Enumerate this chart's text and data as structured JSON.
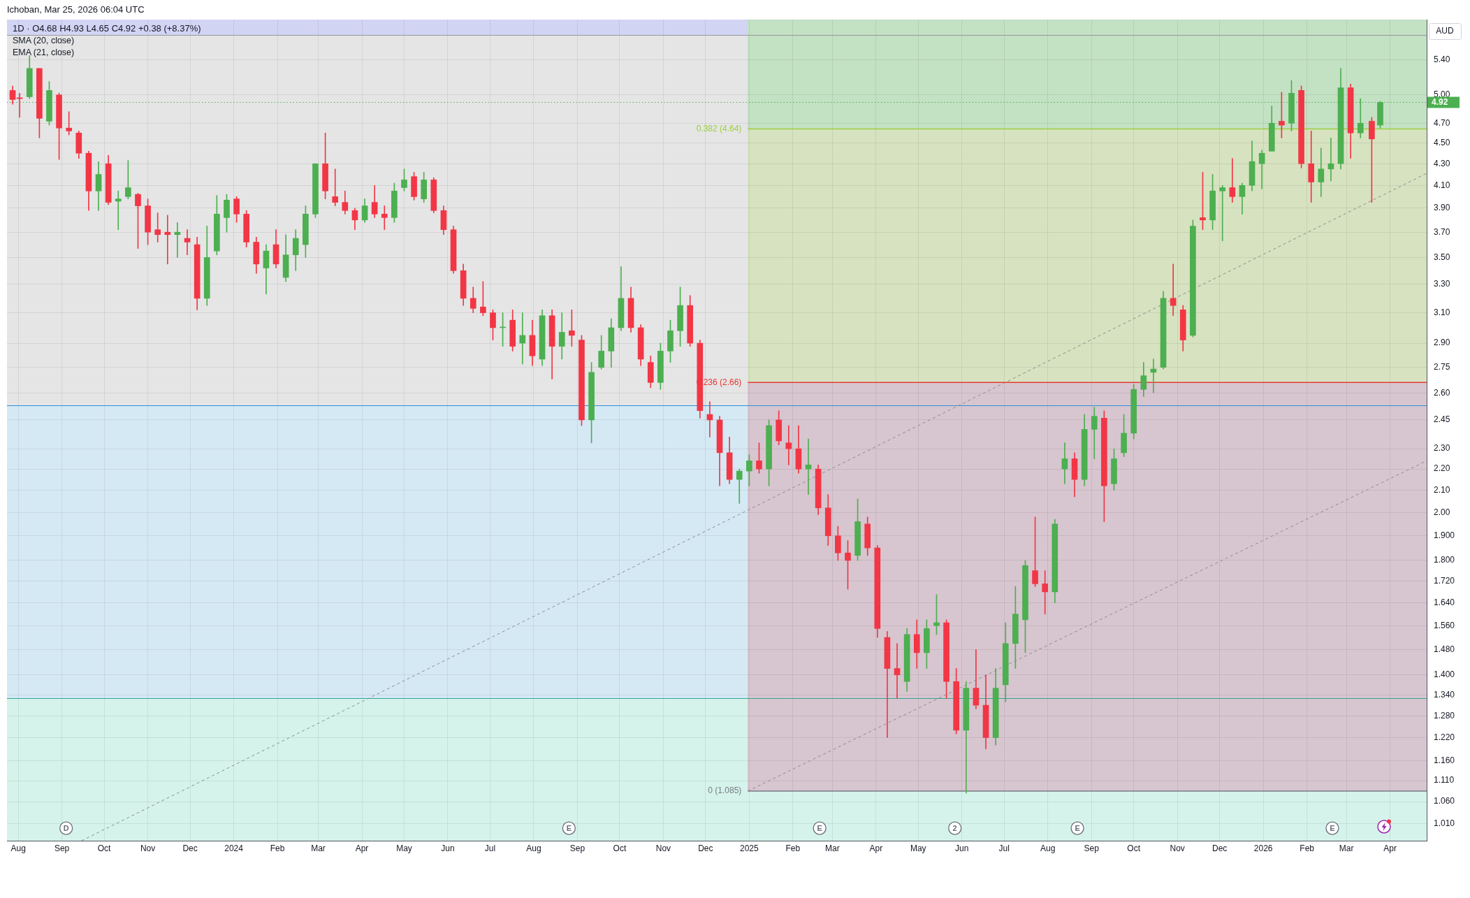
{
  "chart_data": {
    "type": "candlestick",
    "title": "Ichoban, Mar 25, 2026 06:04 UTC",
    "subtitle": "1D · O4.68 H4.93 L4.65 C4.92 +0.38 (+8.37%)",
    "ylabel": "AUD",
    "annotations": [
      "SMA (20, close)",
      "EMA (21, close)",
      {
        "text": "D",
        "x": "2023-09-04",
        "y": 1.0
      },
      {
        "text": "E",
        "x": "2024-08-26",
        "y": 1.0
      },
      {
        "text": "E",
        "x": "2025-02-20",
        "y": 1.0
      },
      {
        "text": "2",
        "x": "2025-05-27",
        "y": 1.0
      },
      {
        "text": "E",
        "x": "2025-08-22",
        "y": 1.0
      },
      {
        "text": "E",
        "x": "2026-02-19",
        "y": 1.0
      }
    ],
    "x": [
      "2023-07-28",
      "2023-08-02",
      "2023-08-09",
      "2023-08-16",
      "2023-08-23",
      "2023-08-30",
      "2023-09-06",
      "2023-09-13",
      "2023-09-20",
      "2023-09-27",
      "2023-10-04",
      "2023-10-11",
      "2023-10-18",
      "2023-10-25",
      "2023-11-01",
      "2023-11-08",
      "2023-11-15",
      "2023-11-22",
      "2023-11-29",
      "2023-12-06",
      "2023-12-13",
      "2023-12-20",
      "2023-12-27",
      "2024-01-03",
      "2024-01-10",
      "2024-01-17",
      "2024-01-24",
      "2024-01-31",
      "2024-02-07",
      "2024-02-14",
      "2024-02-21",
      "2024-02-28",
      "2024-03-06",
      "2024-03-13",
      "2024-03-20",
      "2024-03-27",
      "2024-04-03",
      "2024-04-10",
      "2024-04-17",
      "2024-04-24",
      "2024-05-01",
      "2024-05-08",
      "2024-05-15",
      "2024-05-22",
      "2024-05-29",
      "2024-06-05",
      "2024-06-12",
      "2024-06-19",
      "2024-06-26",
      "2024-07-03",
      "2024-07-10",
      "2024-07-17",
      "2024-07-24",
      "2024-07-31",
      "2024-08-07",
      "2024-08-14",
      "2024-08-21",
      "2024-08-28",
      "2024-09-04",
      "2024-09-11",
      "2024-09-18",
      "2024-09-25",
      "2024-10-02",
      "2024-10-09",
      "2024-10-16",
      "2024-10-23",
      "2024-10-30",
      "2024-11-06",
      "2024-11-13",
      "2024-11-20",
      "2024-11-27",
      "2024-12-04",
      "2024-12-11",
      "2024-12-18",
      "2024-12-25",
      "2025-01-01",
      "2025-01-08",
      "2025-01-15",
      "2025-01-22",
      "2025-01-29",
      "2025-02-05",
      "2025-02-12",
      "2025-02-19",
      "2025-02-26",
      "2025-03-05",
      "2025-03-12",
      "2025-03-19",
      "2025-03-26",
      "2025-04-02",
      "2025-04-09",
      "2025-04-16",
      "2025-04-23",
      "2025-04-30",
      "2025-05-07",
      "2025-05-14",
      "2025-05-21",
      "2025-05-28",
      "2025-06-04",
      "2025-06-11",
      "2025-06-18",
      "2025-06-25",
      "2025-07-02",
      "2025-07-09",
      "2025-07-16",
      "2025-07-23",
      "2025-07-30",
      "2025-08-06",
      "2025-08-13",
      "2025-08-20",
      "2025-08-27",
      "2025-09-03",
      "2025-09-10",
      "2025-09-17",
      "2025-09-24",
      "2025-10-01",
      "2025-10-08",
      "2025-10-15",
      "2025-10-22",
      "2025-10-29",
      "2025-11-05",
      "2025-11-12",
      "2025-11-19",
      "2025-11-26",
      "2025-12-03",
      "2025-12-10",
      "2025-12-17",
      "2025-12-24",
      "2025-12-31",
      "2026-01-07",
      "2026-01-14",
      "2026-01-21",
      "2026-01-28",
      "2026-02-04",
      "2026-02-11",
      "2026-02-18",
      "2026-02-25",
      "2026-03-04",
      "2026-03-11",
      "2026-03-19",
      "2026-03-25"
    ],
    "ohlc": [
      [
        5.05,
        5.1,
        4.9,
        4.95
      ],
      [
        4.97,
        5.02,
        4.76,
        4.96
      ],
      [
        4.98,
        5.45,
        4.96,
        5.3
      ],
      [
        5.3,
        5.3,
        4.55,
        4.75
      ],
      [
        4.72,
        5.15,
        4.68,
        5.05
      ],
      [
        5.0,
        5.02,
        4.34,
        4.65
      ],
      [
        4.65,
        4.82,
        4.58,
        4.62
      ],
      [
        4.6,
        4.62,
        4.35,
        4.4
      ],
      [
        4.4,
        4.42,
        3.88,
        4.05
      ],
      [
        4.05,
        4.32,
        3.88,
        4.2
      ],
      [
        4.3,
        4.38,
        3.93,
        3.95
      ],
      [
        3.96,
        4.05,
        3.72,
        3.98
      ],
      [
        4.0,
        4.33,
        3.98,
        4.08
      ],
      [
        4.02,
        4.03,
        3.57,
        3.92
      ],
      [
        3.92,
        3.98,
        3.6,
        3.7
      ],
      [
        3.72,
        3.86,
        3.62,
        3.68
      ],
      [
        3.7,
        3.84,
        3.45,
        3.68
      ],
      [
        3.68,
        3.78,
        3.5,
        3.7
      ],
      [
        3.65,
        3.72,
        3.52,
        3.62
      ],
      [
        3.6,
        3.66,
        3.12,
        3.2
      ],
      [
        3.2,
        3.75,
        3.15,
        3.5
      ],
      [
        3.55,
        4.01,
        3.52,
        3.85
      ],
      [
        3.82,
        4.02,
        3.7,
        3.97
      ],
      [
        3.98,
        4.0,
        3.78,
        3.85
      ],
      [
        3.85,
        3.88,
        3.58,
        3.62
      ],
      [
        3.62,
        3.66,
        3.38,
        3.45
      ],
      [
        3.42,
        3.6,
        3.23,
        3.55
      ],
      [
        3.6,
        3.72,
        3.42,
        3.45
      ],
      [
        3.35,
        3.68,
        3.32,
        3.52
      ],
      [
        3.52,
        3.72,
        3.4,
        3.65
      ],
      [
        3.6,
        3.92,
        3.5,
        3.85
      ],
      [
        3.85,
        4.3,
        3.82,
        4.3
      ],
      [
        4.3,
        4.6,
        3.98,
        4.05
      ],
      [
        4.0,
        4.25,
        3.92,
        3.95
      ],
      [
        3.95,
        4.05,
        3.85,
        3.88
      ],
      [
        3.88,
        3.9,
        3.72,
        3.8
      ],
      [
        3.8,
        3.98,
        3.78,
        3.92
      ],
      [
        3.95,
        4.1,
        3.82,
        3.85
      ],
      [
        3.85,
        3.92,
        3.72,
        3.82
      ],
      [
        3.82,
        4.12,
        3.78,
        4.05
      ],
      [
        4.08,
        4.25,
        4.05,
        4.15
      ],
      [
        4.18,
        4.22,
        3.97,
        4.0
      ],
      [
        3.98,
        4.22,
        3.95,
        4.15
      ],
      [
        4.15,
        4.17,
        3.86,
        3.88
      ],
      [
        3.88,
        3.92,
        3.68,
        3.72
      ],
      [
        3.72,
        3.75,
        3.38,
        3.4
      ],
      [
        3.4,
        3.45,
        3.15,
        3.2
      ],
      [
        3.2,
        3.28,
        3.1,
        3.13
      ],
      [
        3.14,
        3.32,
        3.08,
        3.1
      ],
      [
        3.1,
        3.12,
        2.92,
        3.0
      ],
      [
        3.0,
        3.1,
        2.88,
        3.0
      ],
      [
        3.05,
        3.12,
        2.85,
        2.88
      ],
      [
        2.9,
        3.1,
        2.77,
        2.95
      ],
      [
        2.95,
        3.05,
        2.76,
        2.82
      ],
      [
        2.8,
        3.12,
        2.76,
        3.08
      ],
      [
        3.08,
        3.12,
        2.68,
        2.88
      ],
      [
        2.88,
        3.1,
        2.8,
        2.97
      ],
      [
        2.98,
        3.12,
        2.88,
        2.95
      ],
      [
        2.92,
        2.95,
        2.42,
        2.45
      ],
      [
        2.45,
        2.78,
        2.33,
        2.72
      ],
      [
        2.75,
        2.95,
        2.74,
        2.85
      ],
      [
        2.85,
        3.06,
        2.75,
        3.0
      ],
      [
        3.0,
        3.43,
        2.98,
        3.2
      ],
      [
        3.2,
        3.28,
        2.97,
        3.0
      ],
      [
        3.0,
        3.02,
        2.76,
        2.8
      ],
      [
        2.78,
        2.82,
        2.63,
        2.66
      ],
      [
        2.66,
        2.9,
        2.62,
        2.85
      ],
      [
        2.85,
        3.05,
        2.78,
        2.98
      ],
      [
        2.98,
        3.28,
        2.88,
        3.15
      ],
      [
        3.15,
        3.22,
        2.88,
        2.9
      ],
      [
        2.9,
        2.92,
        2.46,
        2.5
      ],
      [
        2.48,
        2.55,
        2.36,
        2.45
      ],
      [
        2.45,
        2.47,
        2.12,
        2.28
      ],
      [
        2.28,
        2.36,
        2.13,
        2.15
      ],
      [
        2.15,
        2.2,
        2.04,
        2.19
      ],
      [
        2.19,
        2.27,
        2.12,
        2.24
      ],
      [
        2.24,
        2.33,
        2.18,
        2.2
      ],
      [
        2.2,
        2.45,
        2.12,
        2.42
      ],
      [
        2.45,
        2.5,
        2.32,
        2.34
      ],
      [
        2.33,
        2.42,
        2.22,
        2.3
      ],
      [
        2.3,
        2.42,
        2.18,
        2.2
      ],
      [
        2.2,
        2.35,
        2.08,
        2.22
      ],
      [
        2.2,
        2.22,
        1.99,
        2.02
      ],
      [
        2.02,
        2.08,
        1.86,
        1.9
      ],
      [
        1.9,
        1.94,
        1.8,
        1.83
      ],
      [
        1.83,
        1.88,
        1.69,
        1.8
      ],
      [
        1.82,
        2.06,
        1.8,
        1.96
      ],
      [
        1.95,
        1.98,
        1.82,
        1.85
      ],
      [
        1.85,
        1.86,
        1.52,
        1.55
      ],
      [
        1.52,
        1.54,
        1.22,
        1.42
      ],
      [
        1.42,
        1.5,
        1.33,
        1.4
      ],
      [
        1.38,
        1.55,
        1.35,
        1.53
      ],
      [
        1.53,
        1.58,
        1.42,
        1.47
      ],
      [
        1.47,
        1.58,
        1.42,
        1.55
      ],
      [
        1.56,
        1.67,
        1.53,
        1.57
      ],
      [
        1.57,
        1.58,
        1.33,
        1.38
      ],
      [
        1.38,
        1.42,
        1.23,
        1.24
      ],
      [
        1.24,
        1.38,
        1.08,
        1.36
      ],
      [
        1.36,
        1.48,
        1.3,
        1.31
      ],
      [
        1.31,
        1.4,
        1.19,
        1.22
      ],
      [
        1.22,
        1.42,
        1.2,
        1.36
      ],
      [
        1.37,
        1.57,
        1.32,
        1.5
      ],
      [
        1.5,
        1.7,
        1.42,
        1.6
      ],
      [
        1.58,
        1.8,
        1.47,
        1.78
      ],
      [
        1.76,
        1.98,
        1.7,
        1.71
      ],
      [
        1.71,
        1.76,
        1.6,
        1.68
      ],
      [
        1.68,
        1.97,
        1.64,
        1.95
      ],
      [
        2.2,
        2.33,
        2.13,
        2.25
      ],
      [
        2.25,
        2.28,
        2.07,
        2.15
      ],
      [
        2.15,
        2.48,
        2.12,
        2.4
      ],
      [
        2.4,
        2.52,
        2.25,
        2.47
      ],
      [
        2.46,
        2.5,
        1.96,
        2.12
      ],
      [
        2.13,
        2.3,
        2.1,
        2.25
      ],
      [
        2.28,
        2.48,
        2.26,
        2.38
      ],
      [
        2.38,
        2.65,
        2.35,
        2.62
      ],
      [
        2.62,
        2.78,
        2.58,
        2.7
      ],
      [
        2.72,
        2.8,
        2.6,
        2.74
      ],
      [
        2.75,
        3.25,
        2.74,
        3.2
      ],
      [
        3.2,
        3.45,
        3.08,
        3.15
      ],
      [
        3.12,
        3.15,
        2.85,
        2.92
      ],
      [
        2.95,
        3.8,
        2.94,
        3.75
      ],
      [
        3.82,
        4.22,
        3.72,
        3.8
      ],
      [
        3.8,
        4.2,
        3.72,
        4.05
      ],
      [
        4.05,
        4.1,
        3.63,
        4.08
      ],
      [
        4.08,
        4.35,
        3.95,
        4.0
      ],
      [
        4.0,
        4.12,
        3.85,
        4.1
      ],
      [
        4.1,
        4.52,
        4.05,
        4.32
      ],
      [
        4.3,
        4.43,
        4.07,
        4.4
      ],
      [
        4.42,
        4.88,
        4.42,
        4.7
      ],
      [
        4.72,
        5.03,
        4.55,
        4.68
      ],
      [
        4.7,
        5.16,
        4.62,
        5.02
      ],
      [
        5.05,
        5.1,
        4.26,
        4.3
      ],
      [
        4.3,
        4.62,
        3.95,
        4.13
      ],
      [
        4.13,
        4.45,
        4.0,
        4.25
      ],
      [
        4.25,
        4.55,
        4.14,
        4.3
      ],
      [
        4.3,
        5.3,
        4.25,
        5.08
      ],
      [
        5.08,
        5.12,
        4.35,
        4.6
      ],
      [
        4.6,
        4.96,
        4.55,
        4.7
      ],
      [
        4.72,
        4.76,
        3.95,
        4.54
      ],
      [
        4.68,
        4.93,
        4.65,
        4.92
      ]
    ],
    "colors": [
      "#f23645",
      "#f23645",
      "#4caf50",
      "#f23645",
      "#4caf50",
      "#f23645",
      "#f23645",
      "#f23645",
      "#f23645",
      "#4caf50",
      "#f23645",
      "#4caf50",
      "#4caf50",
      "#f23645",
      "#f23645",
      "#f23645",
      "#f23645",
      "#4caf50",
      "#f23645",
      "#f23645",
      "#4caf50",
      "#4caf50",
      "#4caf50",
      "#f23645",
      "#f23645",
      "#f23645",
      "#4caf50",
      "#f23645",
      "#4caf50",
      "#4caf50",
      "#4caf50",
      "#4caf50",
      "#f23645",
      "#f23645",
      "#f23645",
      "#f23645",
      "#4caf50",
      "#f23645",
      "#f23645",
      "#4caf50",
      "#4caf50",
      "#f23645",
      "#4caf50",
      "#f23645",
      "#f23645",
      "#f23645",
      "#f23645",
      "#f23645",
      "#f23645",
      "#f23645",
      "#4caf50",
      "#f23645",
      "#4caf50",
      "#f23645",
      "#4caf50",
      "#f23645",
      "#4caf50",
      "#f23645",
      "#f23645",
      "#4caf50",
      "#4caf50",
      "#4caf50",
      "#4caf50",
      "#f23645",
      "#f23645",
      "#f23645",
      "#4caf50",
      "#4caf50",
      "#4caf50",
      "#f23645",
      "#f23645",
      "#f23645",
      "#f23645",
      "#f23645",
      "#4caf50",
      "#4caf50",
      "#f23645",
      "#4caf50",
      "#f23645",
      "#f23645",
      "#f23645",
      "#4caf50",
      "#f23645",
      "#f23645",
      "#f23645",
      "#f23645",
      "#4caf50",
      "#f23645",
      "#f23645",
      "#f23645",
      "#f23645",
      "#4caf50",
      "#f23645",
      "#4caf50",
      "#4caf50",
      "#f23645",
      "#f23645",
      "#4caf50",
      "#f23645",
      "#f23645",
      "#4caf50",
      "#4caf50",
      "#4caf50",
      "#4caf50",
      "#f23645",
      "#f23645",
      "#4caf50",
      "#4caf50",
      "#f23645",
      "#4caf50",
      "#4caf50",
      "#f23645",
      "#4caf50",
      "#4caf50",
      "#4caf50",
      "#4caf50",
      "#4caf50",
      "#4caf50",
      "#f23645",
      "#f23645",
      "#4caf50",
      "#f23645",
      "#4caf50",
      "#4caf50",
      "#f23645",
      "#4caf50",
      "#4caf50",
      "#4caf50",
      "#4caf50",
      "#f23645",
      "#4caf50",
      "#f23645",
      "#f23645",
      "#4caf50",
      "#4caf50",
      "#4caf50",
      "#f23645",
      "#4caf50",
      "#f23645",
      "#4caf50"
    ],
    "series": [
      {
        "type": "line",
        "name": "0.382 (4.64)",
        "color": "#9ccf3e",
        "x": [
          "2024-12-31",
          "2026-04-27"
        ],
        "values": [
          4.64,
          4.64
        ]
      },
      {
        "type": "line",
        "name": "0.236 (2.66)",
        "color": "#e53935",
        "x": [
          "2024-12-31",
          "2026-04-27"
        ],
        "values": [
          2.66,
          2.66
        ]
      },
      {
        "type": "line",
        "name": "0 (1.085)",
        "color": "#787b86",
        "x": [
          "2024-12-31",
          "2026-04-27"
        ],
        "values": [
          1.085,
          1.085
        ]
      },
      {
        "type": "line",
        "color": "#8c8c8c",
        "line_style": "dashed",
        "x": [
          "2023-09-15",
          "2026-04-27"
        ],
        "values": [
          0.973,
          4.21
        ]
      },
      {
        "type": "line",
        "color": "#8c8c8c",
        "line_style": "dashed",
        "x": [
          "2024-12-31",
          "2026-04-27"
        ],
        "values": [
          1.085,
          2.24
        ]
      }
    ],
    "ref_lines": [
      {
        "axis": "y",
        "value": 5.7,
        "color": "#9598a1"
      },
      {
        "axis": "y",
        "value": 2.53,
        "color": "#2f8fd6"
      },
      {
        "axis": "y",
        "value": 1.33,
        "color": "#33a596"
      },
      {
        "axis": "y",
        "value": 4.92,
        "label": "4.92",
        "color": "#4caf50",
        "line_style": "dotted"
      }
    ],
    "bands": [
      {
        "axis": "y",
        "from": 5.7,
        "to": 5.9,
        "color": "#d2d4f4"
      },
      {
        "axis": "y",
        "from": 2.53,
        "to": 5.7,
        "color": "#e5e5e5"
      },
      {
        "axis": "y",
        "from": 1.33,
        "to": 2.53,
        "color": "#d5e9f5"
      },
      {
        "axis": "y",
        "from": 0.973,
        "to": 1.33,
        "color": "#d5f3ea"
      },
      {
        "axis": "x",
        "from": "2024-12-31",
        "to": "2026-04-27",
        "color": "#d7c5cf"
      },
      {
        "axis": "y",
        "from": 4.64,
        "to": 5.9,
        "color": "#c3e1c3"
      },
      {
        "axis": "y",
        "from": 2.66,
        "to": 4.64,
        "color": "#d7e2c1"
      },
      {
        "axis": "y",
        "from": 0.973,
        "to": 1.085,
        "color": "#d5f3ea"
      }
    ],
    "xlim": [
      "2023-07-24",
      "2026-04-27"
    ],
    "xticks": [
      {
        "value": "2023-08-01",
        "label": "Aug"
      },
      {
        "value": "2023-09-01",
        "label": "Sep"
      },
      {
        "value": "2023-10-01",
        "label": "Oct"
      },
      {
        "value": "2023-11-01",
        "label": "Nov"
      },
      {
        "value": "2023-12-01",
        "label": "Dec"
      },
      {
        "value": "2024-01-01",
        "label": "2024"
      },
      {
        "value": "2024-02-01",
        "label": "Feb"
      },
      {
        "value": "2024-03-01",
        "label": "Mar"
      },
      {
        "value": "2024-04-01",
        "label": "Apr"
      },
      {
        "value": "2024-05-01",
        "label": "May"
      },
      {
        "value": "2024-06-01",
        "label": "Jun"
      },
      {
        "value": "2024-07-01",
        "label": "Jul"
      },
      {
        "value": "2024-08-01",
        "label": "Aug"
      },
      {
        "value": "2024-09-01",
        "label": "Sep"
      },
      {
        "value": "2024-10-01",
        "label": "Oct"
      },
      {
        "value": "2024-11-01",
        "label": "Nov"
      },
      {
        "value": "2024-12-01",
        "label": "Dec"
      },
      {
        "value": "2025-01-01",
        "label": "2025"
      },
      {
        "value": "2025-02-01",
        "label": "Feb"
      },
      {
        "value": "2025-03-01",
        "label": "Mar"
      },
      {
        "value": "2025-04-01",
        "label": "Apr"
      },
      {
        "value": "2025-05-01",
        "label": "May"
      },
      {
        "value": "2025-06-01",
        "label": "Jun"
      },
      {
        "value": "2025-07-01",
        "label": "Jul"
      },
      {
        "value": "2025-08-01",
        "label": "Aug"
      },
      {
        "value": "2025-09-01",
        "label": "Sep"
      },
      {
        "value": "2025-10-01",
        "label": "Oct"
      },
      {
        "value": "2025-11-01",
        "label": "Nov"
      },
      {
        "value": "2025-12-01",
        "label": "Dec"
      },
      {
        "value": "2026-01-01",
        "label": "2026"
      },
      {
        "value": "2026-02-01",
        "label": "Feb"
      },
      {
        "value": "2026-03-01",
        "label": "Mar"
      },
      {
        "value": "2026-04-01",
        "label": "Apr"
      }
    ],
    "ylim": [
      0.973,
      5.9
    ],
    "yticks": [
      {
        "value": 1.01,
        "label": "1.010"
      },
      {
        "value": 1.06,
        "label": "1.060"
      },
      {
        "value": 1.11,
        "label": "1.110"
      },
      {
        "value": 1.16,
        "label": "1.160"
      },
      {
        "value": 1.22,
        "label": "1.220"
      },
      {
        "value": 1.28,
        "label": "1.280"
      },
      {
        "value": 1.34,
        "label": "1.340"
      },
      {
        "value": 1.4,
        "label": "1.400"
      },
      {
        "value": 1.48,
        "label": "1.480"
      },
      {
        "value": 1.56,
        "label": "1.560"
      },
      {
        "value": 1.64,
        "label": "1.640"
      },
      {
        "value": 1.72,
        "label": "1.720"
      },
      {
        "value": 1.8,
        "label": "1.800"
      },
      {
        "value": 1.9,
        "label": "1.900"
      },
      {
        "value": 2,
        "label": "2.00"
      },
      {
        "value": 2.1,
        "label": "2.10"
      },
      {
        "value": 2.2,
        "label": "2.20"
      },
      {
        "value": 2.3,
        "label": "2.30"
      },
      2.45,
      {
        "value": 2.6,
        "label": "2.60"
      },
      2.75,
      {
        "value": 2.9,
        "label": "2.90"
      },
      {
        "value": 3.1,
        "label": "3.10"
      },
      {
        "value": 3.3,
        "label": "3.30"
      },
      {
        "value": 3.5,
        "label": "3.50"
      },
      {
        "value": 3.7,
        "label": "3.70"
      },
      {
        "value": 3.9,
        "label": "3.90"
      },
      {
        "value": 4.1,
        "label": "4.10"
      },
      {
        "value": 4.3,
        "label": "4.30"
      },
      {
        "value": 4.5,
        "label": "4.50"
      },
      {
        "value": 4.7,
        "label": "4.70"
      },
      {
        "value": 5,
        "label": "5.00"
      },
      {
        "value": 5.4,
        "label": "5.40"
      }
    ],
    "grid": true,
    "log": true
  }
}
